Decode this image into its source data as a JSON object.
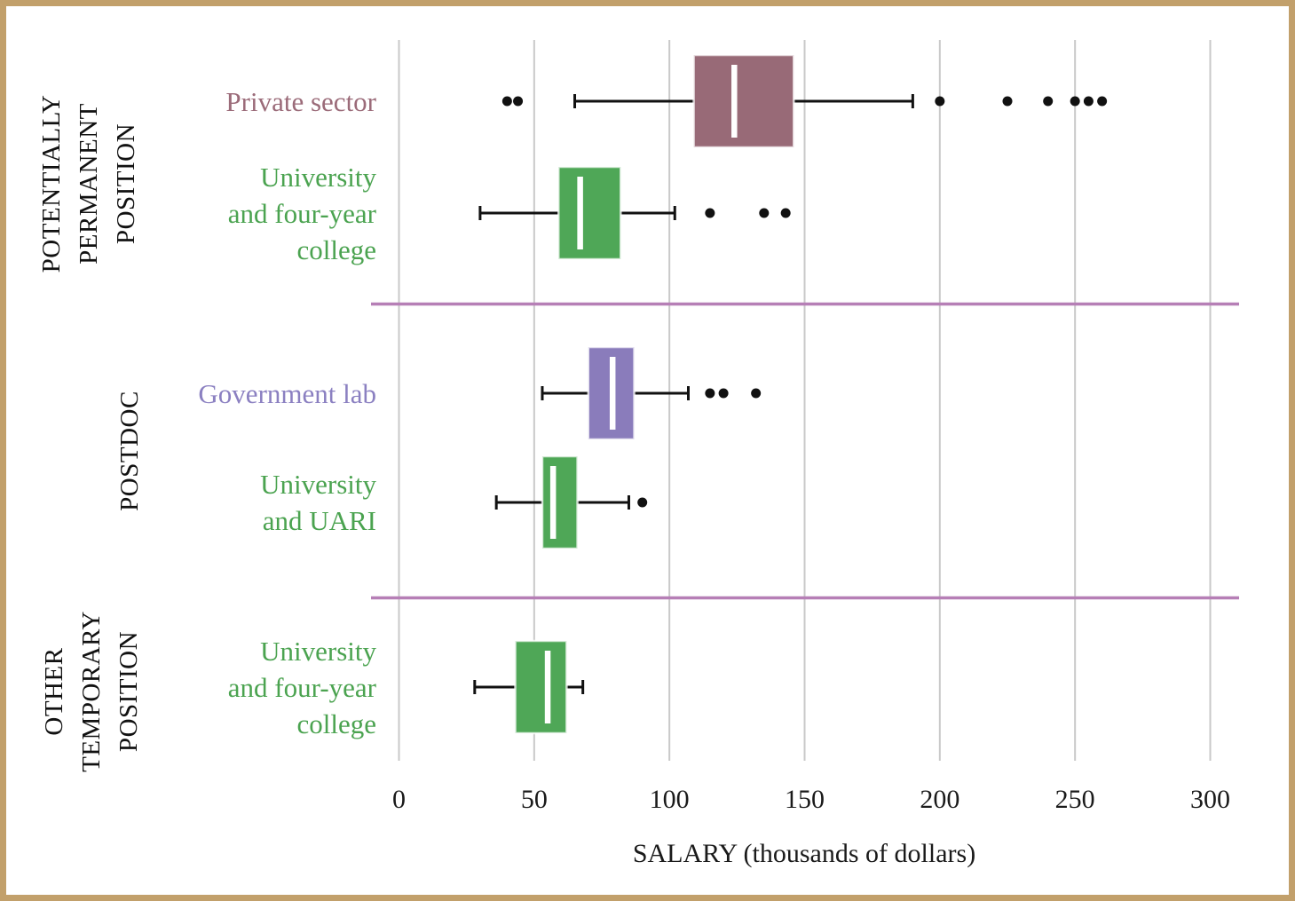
{
  "frame": {
    "border_color": "#c2a06b",
    "background_color": "#ffffff"
  },
  "axis": {
    "title": "SALARY (thousands of dollars)",
    "tick_labels": [
      "0",
      "50",
      "100",
      "150",
      "200",
      "250",
      "300"
    ],
    "tick_values": [
      0,
      50,
      100,
      150,
      200,
      250,
      300
    ],
    "gridline_color": "#c9c9c9",
    "text_color": "#1a1a1a"
  },
  "separator_color": "#b67fb6",
  "chart_data": {
    "type": "boxplot",
    "orientation": "horizontal",
    "units": "thousands of dollars",
    "xlabel": "SALARY (thousands of dollars)",
    "xlim": [
      0,
      300
    ],
    "x_ticks": [
      0,
      50,
      100,
      150,
      200,
      250,
      300
    ],
    "grid": true,
    "groups": [
      {
        "name": "POTENTIALLY PERMANENT POSITION",
        "name_lines": [
          "POTENTIALLY",
          "PERMANENT",
          "POSITION"
        ],
        "row_indexes": [
          0,
          1
        ]
      },
      {
        "name": "POSTDOC",
        "name_lines": [
          "POSTDOC"
        ],
        "row_indexes": [
          2,
          3
        ]
      },
      {
        "name": "OTHER TEMPORARY POSITION",
        "name_lines": [
          "OTHER",
          "TEMPORARY",
          "POSITION"
        ],
        "row_indexes": [
          4
        ]
      }
    ],
    "series": [
      {
        "label": "Private sector",
        "label_lines": [
          "Private sector"
        ],
        "box_color": "#986a77",
        "label_color": "#9b6b79",
        "whisker_low": 65,
        "q1": 109,
        "median": 124,
        "q3": 146,
        "whisker_high": 190,
        "outliers": [
          40,
          44,
          200,
          225,
          240,
          250,
          255,
          260
        ]
      },
      {
        "label": "University and four-year college",
        "label_lines": [
          "University",
          "and four-year",
          "college"
        ],
        "box_color": "#4fa757",
        "label_color": "#4ba350",
        "whisker_low": 30,
        "q1": 59,
        "median": 67,
        "q3": 82,
        "whisker_high": 102,
        "outliers": [
          115,
          135,
          143
        ]
      },
      {
        "label": "Government lab",
        "label_lines": [
          "Government lab"
        ],
        "box_color": "#8a7cbb",
        "label_color": "#8b80c1",
        "whisker_low": 53,
        "q1": 70,
        "median": 79,
        "q3": 87,
        "whisker_high": 107,
        "outliers": [
          115,
          120,
          132
        ]
      },
      {
        "label": "University and UARI",
        "label_lines": [
          "University",
          "and UARI"
        ],
        "box_color": "#4fa757",
        "label_color": "#4ba350",
        "whisker_low": 36,
        "q1": 53,
        "median": 57,
        "q3": 66,
        "whisker_high": 85,
        "outliers": [
          90
        ]
      },
      {
        "label": "University and four-year college",
        "label_lines": [
          "University",
          "and four-year",
          "college"
        ],
        "box_color": "#4fa757",
        "label_color": "#4ba350",
        "whisker_low": 28,
        "q1": 43,
        "median": 55,
        "q3": 62,
        "whisker_high": 68,
        "outliers": []
      }
    ]
  }
}
